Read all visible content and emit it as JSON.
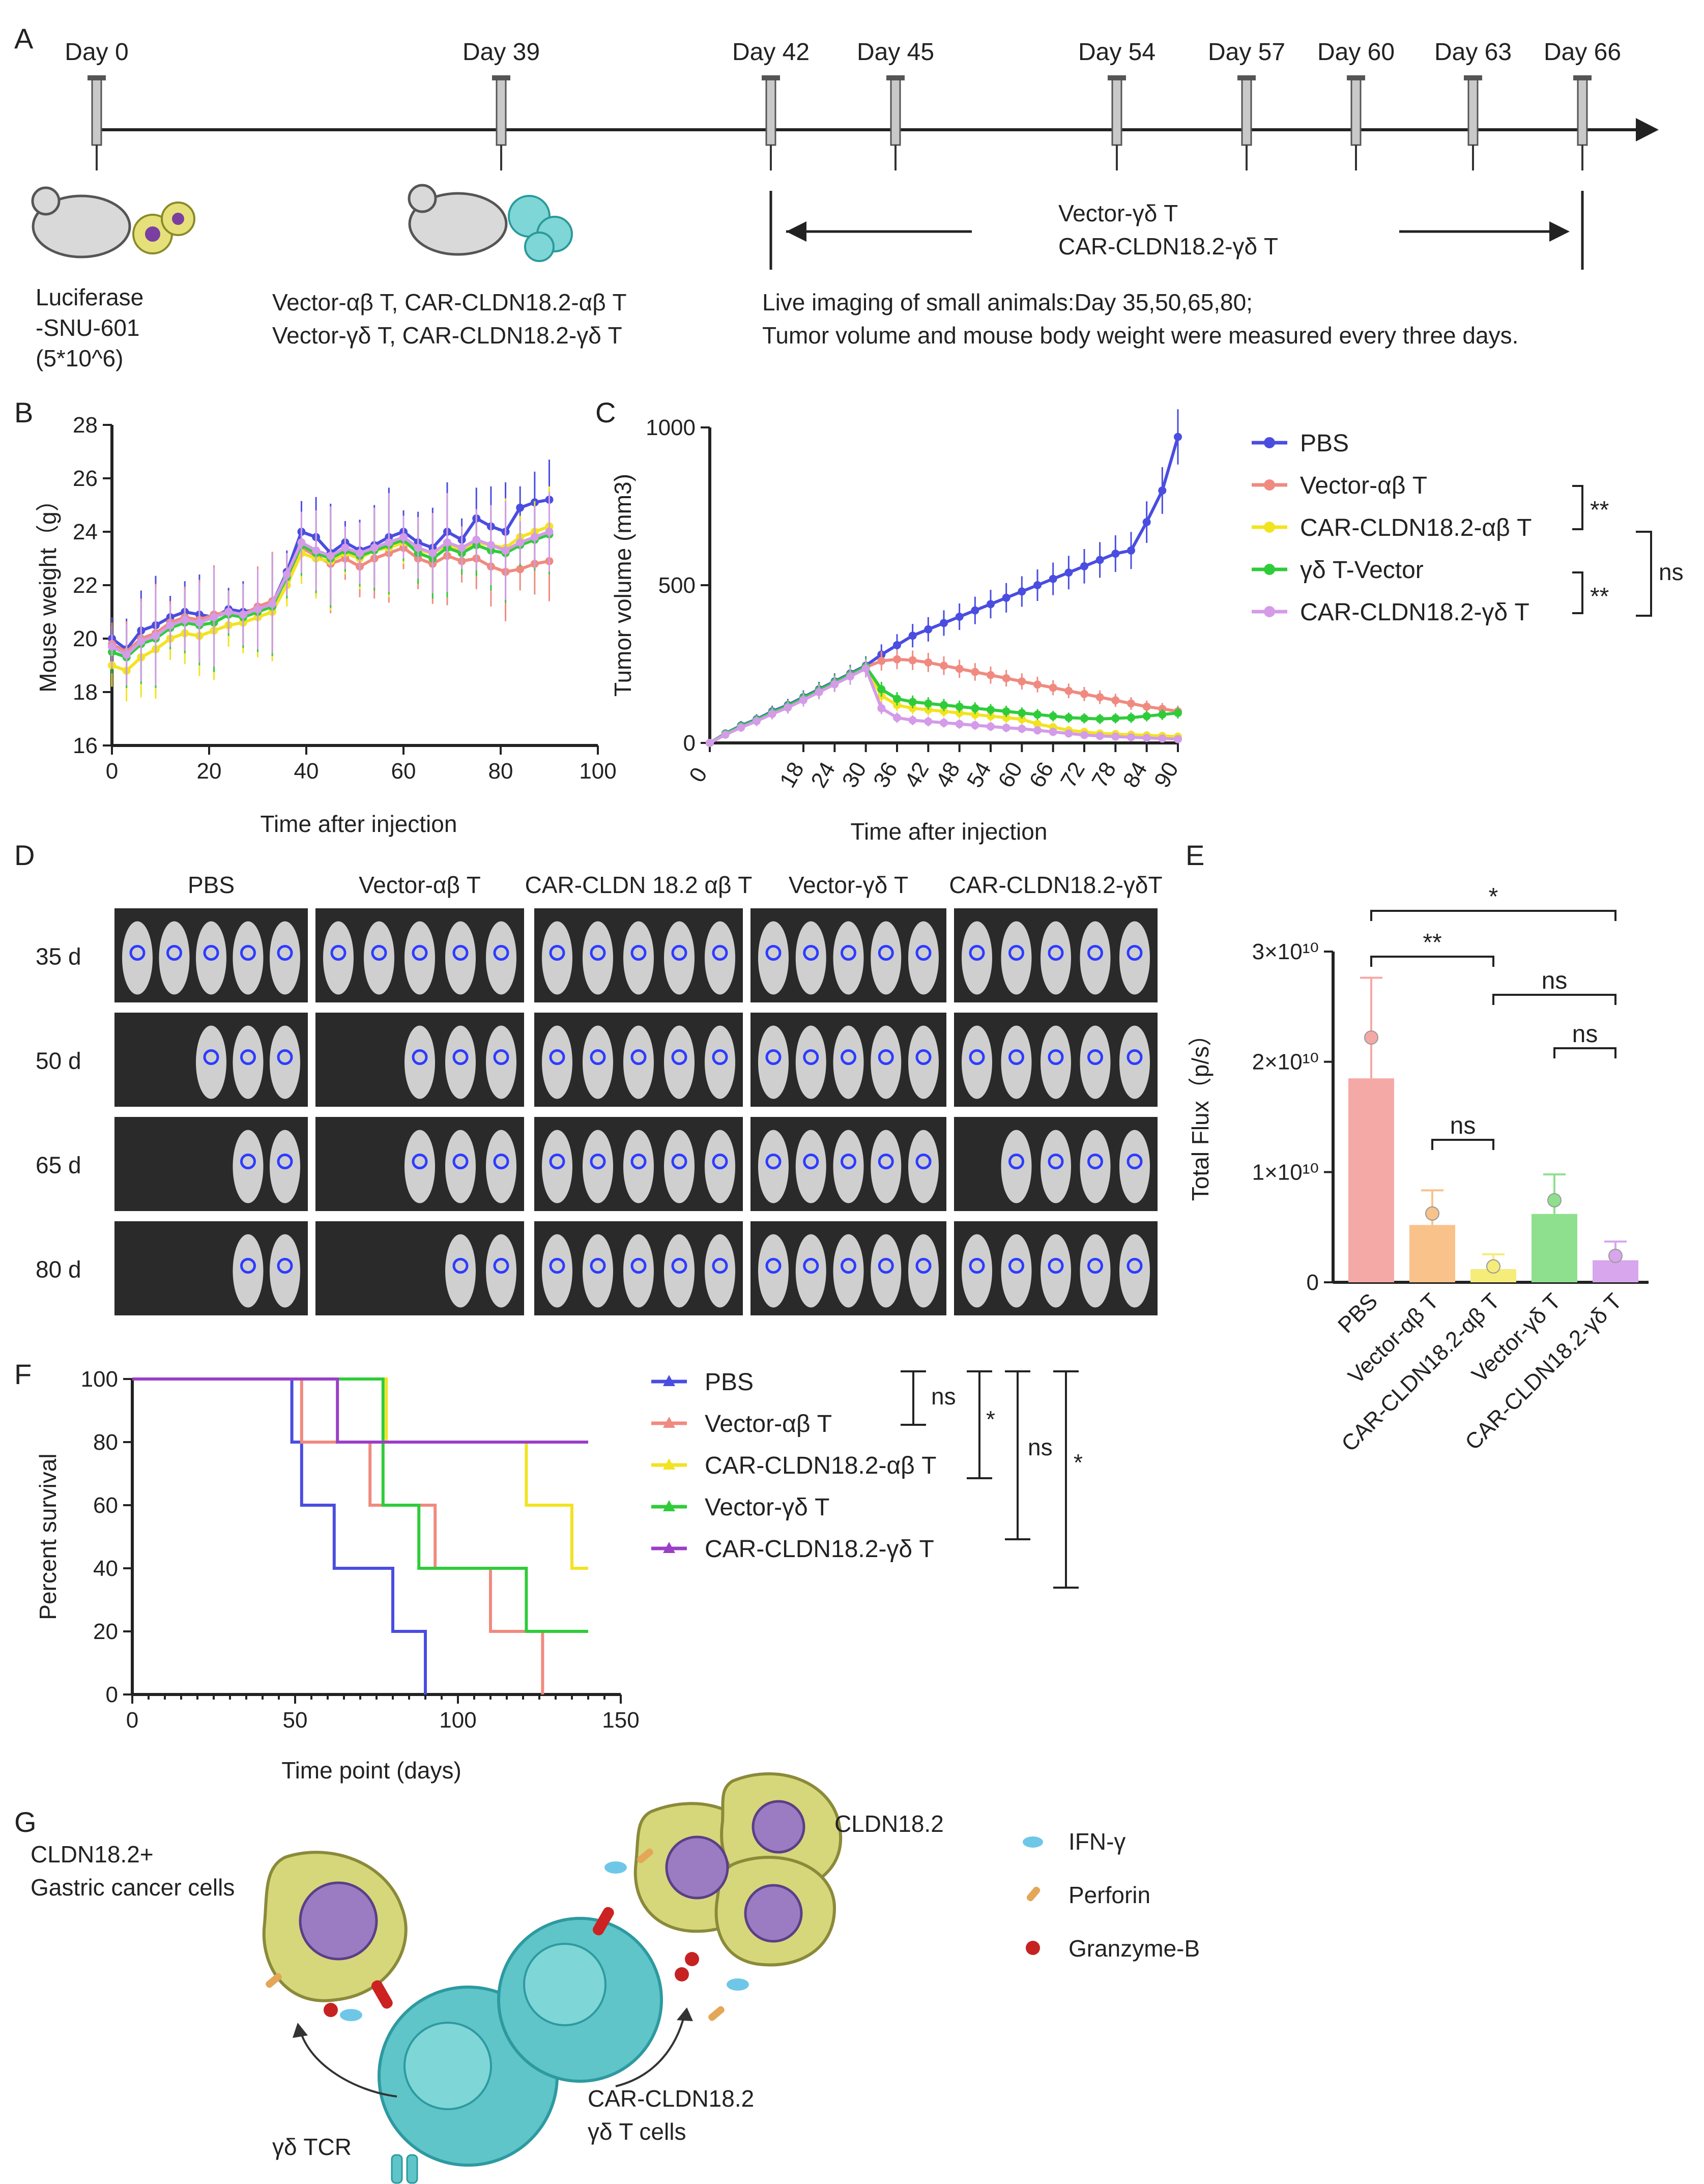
{
  "panel_labels": [
    "A",
    "B",
    "C",
    "D",
    "E",
    "F",
    "G"
  ],
  "panel_a": {
    "timeline_days": [
      "Day 0",
      "Day 39",
      "Day 42",
      "Day 45",
      "Day 54",
      "Day 57",
      "Day 60",
      "Day 63",
      "Day 66"
    ],
    "cell_label": [
      "Luciferase",
      "-SNU-601",
      "(5*10^6)"
    ],
    "groups_text": [
      "Vector-αβ T, CAR-CLDN18.2-αβ T",
      "Vector-γδ T, CAR-CLDN18.2-γδ T"
    ],
    "arrow_text": [
      "Vector-γδ T",
      "CAR-CLDN18.2-γδ T"
    ],
    "note_text": [
      "Live imaging of small animals:Day 35,50,65,80;",
      "Tumor volume and mouse body weight were measured every three days."
    ]
  },
  "chart_data": [
    {
      "id": "B",
      "type": "line",
      "xlabel": "Time after injection",
      "ylabel": "Mouse weight（g）",
      "xlim": [
        0,
        100
      ],
      "ylim": [
        16,
        28
      ],
      "xticks": [
        "0",
        "20",
        "40",
        "60",
        "80",
        "100"
      ],
      "yticks": [
        "16",
        "18",
        "20",
        "22",
        "24",
        "26",
        "28"
      ],
      "x": [
        0,
        3,
        6,
        9,
        12,
        15,
        18,
        21,
        24,
        27,
        30,
        33,
        36,
        39,
        42,
        45,
        48,
        51,
        54,
        57,
        60,
        63,
        66,
        69,
        72,
        75,
        78,
        81,
        84,
        87,
        90
      ],
      "series": [
        {
          "name": "PBS",
          "color": "#4a4de0",
          "values": [
            20.0,
            19.6,
            20.3,
            20.5,
            20.8,
            21.0,
            20.9,
            20.8,
            21.1,
            21.0,
            21.1,
            21.3,
            22.5,
            24.0,
            23.8,
            23.2,
            23.6,
            23.3,
            23.5,
            23.8,
            24.0,
            23.6,
            23.4,
            24.0,
            23.7,
            24.5,
            24.2,
            24.0,
            24.9,
            25.1,
            25.2
          ]
        },
        {
          "name": "Vector-αβ T",
          "color": "#f08a80",
          "values": [
            19.8,
            19.5,
            20.0,
            20.2,
            20.6,
            20.8,
            20.7,
            20.9,
            21.0,
            20.9,
            21.2,
            21.4,
            22.2,
            23.4,
            23.1,
            22.8,
            23.0,
            22.7,
            23.0,
            23.2,
            23.4,
            23.0,
            22.8,
            23.1,
            22.9,
            23.0,
            22.7,
            22.5,
            22.6,
            22.8,
            22.9
          ]
        },
        {
          "name": "CAR-CLDN18.2-αβ T",
          "color": "#f2e320",
          "values": [
            19.0,
            18.8,
            19.3,
            19.6,
            20.0,
            20.2,
            20.1,
            20.3,
            20.5,
            20.6,
            20.8,
            21.0,
            22.0,
            23.2,
            23.0,
            22.9,
            23.2,
            23.0,
            23.3,
            23.4,
            23.6,
            23.3,
            23.2,
            23.5,
            23.3,
            23.6,
            23.5,
            23.4,
            23.8,
            24.0,
            24.2
          ]
        },
        {
          "name": "Vector-γδ T",
          "color": "#2fcc3a",
          "values": [
            19.5,
            19.3,
            19.8,
            20.0,
            20.4,
            20.6,
            20.5,
            20.6,
            20.9,
            20.8,
            21.0,
            21.2,
            22.3,
            23.5,
            23.2,
            23.0,
            23.3,
            23.1,
            23.3,
            23.5,
            23.7,
            23.2,
            23.0,
            23.4,
            23.2,
            23.5,
            23.3,
            23.2,
            23.5,
            23.7,
            23.9
          ]
        },
        {
          "name": "CAR-CLDN18.2-γδ T",
          "color": "#d49be8",
          "values": [
            19.7,
            19.4,
            19.9,
            20.1,
            20.5,
            20.7,
            20.6,
            20.8,
            21.0,
            20.9,
            21.1,
            21.3,
            22.4,
            23.6,
            23.3,
            23.1,
            23.4,
            23.2,
            23.4,
            23.6,
            23.8,
            23.4,
            23.2,
            23.6,
            23.4,
            23.7,
            23.5,
            23.3,
            23.6,
            23.8,
            24.0
          ]
        }
      ]
    },
    {
      "id": "C",
      "type": "line",
      "xlabel": "Time after injection",
      "ylabel": "Tumor volume (mm3)",
      "xlim": [
        0,
        90
      ],
      "ylim": [
        0,
        1000
      ],
      "xticks": [
        "0",
        "18",
        "24",
        "30",
        "36",
        "42",
        "48",
        "54",
        "60",
        "66",
        "72",
        "78",
        "84",
        "90"
      ],
      "yticks": [
        "0",
        "500",
        "1000"
      ],
      "x": [
        0,
        3,
        6,
        9,
        12,
        15,
        18,
        21,
        24,
        27,
        30,
        33,
        36,
        39,
        42,
        45,
        48,
        51,
        54,
        57,
        60,
        63,
        66,
        69,
        72,
        75,
        78,
        81,
        84,
        87,
        90
      ],
      "series": [
        {
          "name": "PBS",
          "color": "#4a4de0",
          "values": [
            0,
            30,
            55,
            75,
            100,
            120,
            145,
            170,
            195,
            220,
            245,
            280,
            310,
            340,
            360,
            380,
            400,
            420,
            440,
            460,
            480,
            500,
            520,
            540,
            560,
            580,
            600,
            610,
            700,
            800,
            970
          ]
        },
        {
          "name": "Vector-αβ T",
          "color": "#f08a80",
          "values": [
            0,
            28,
            52,
            72,
            95,
            115,
            140,
            165,
            190,
            215,
            240,
            260,
            265,
            262,
            255,
            245,
            235,
            225,
            215,
            205,
            195,
            185,
            175,
            165,
            155,
            145,
            135,
            125,
            115,
            108,
            100
          ]
        },
        {
          "name": "CAR-CLDN18.2-αβ T",
          "color": "#f2e320",
          "values": [
            0,
            27,
            50,
            70,
            93,
            113,
            137,
            162,
            187,
            212,
            237,
            150,
            120,
            110,
            105,
            100,
            95,
            90,
            85,
            80,
            75,
            60,
            50,
            40,
            35,
            30,
            28,
            26,
            24,
            22,
            20
          ]
        },
        {
          "name": "γδ T-Vector",
          "color": "#2fcc3a",
          "values": [
            0,
            29,
            53,
            73,
            97,
            117,
            142,
            167,
            192,
            217,
            242,
            170,
            140,
            130,
            125,
            120,
            115,
            110,
            105,
            100,
            95,
            90,
            85,
            80,
            78,
            76,
            78,
            80,
            85,
            90,
            95
          ]
        },
        {
          "name": "CAR-CLDN18.2-γδ T",
          "color": "#d49be8",
          "values": [
            0,
            26,
            49,
            69,
            92,
            112,
            136,
            161,
            186,
            211,
            236,
            110,
            80,
            72,
            68,
            64,
            60,
            56,
            52,
            48,
            45,
            40,
            35,
            30,
            25,
            22,
            20,
            18,
            16,
            14,
            12
          ]
        }
      ],
      "significance": [
        "**",
        "**",
        "ns"
      ]
    },
    {
      "id": "E",
      "type": "bar",
      "ylabel": "Total Flux（p/s）",
      "ylim": [
        0,
        30000000000.0
      ],
      "yticks": [
        "0",
        "1×10¹⁰",
        "2×10¹⁰",
        "3×10¹⁰"
      ],
      "categories": [
        "PBS",
        "Vector-αβ T",
        "CAR-CLDN18.2-αβ T",
        "Vector-γδ T",
        "CAR-CLDN18.2-γδ T"
      ],
      "colors": [
        "#f5a9a6",
        "#f9c28a",
        "#f5ec7a",
        "#8ee08e",
        "#d7a6ec"
      ],
      "values": [
        18500000000.0,
        5200000000.0,
        1200000000.0,
        6200000000.0,
        2000000000.0
      ],
      "significance": [
        "*",
        "**",
        "ns",
        "ns",
        "ns"
      ]
    },
    {
      "id": "F",
      "type": "line",
      "xlabel": "Time point (days)",
      "ylabel": "Percent survival",
      "xlim": [
        0,
        150
      ],
      "ylim": [
        0,
        100
      ],
      "xticks": [
        "0",
        "50",
        "100",
        "150"
      ],
      "yticks": [
        "0",
        "20",
        "40",
        "60",
        "80",
        "100"
      ],
      "series": [
        {
          "name": "PBS",
          "color": "#4a4de0",
          "steps": [
            [
              0,
              100
            ],
            [
              49,
              100
            ],
            [
              49,
              80
            ],
            [
              52,
              80
            ],
            [
              52,
              60
            ],
            [
              62,
              60
            ],
            [
              62,
              40
            ],
            [
              80,
              40
            ],
            [
              80,
              20
            ],
            [
              90,
              20
            ],
            [
              90,
              0
            ]
          ]
        },
        {
          "name": "Vector-αβ T",
          "color": "#f08a80",
          "steps": [
            [
              0,
              100
            ],
            [
              52,
              100
            ],
            [
              52,
              80
            ],
            [
              73,
              80
            ],
            [
              73,
              60
            ],
            [
              93,
              60
            ],
            [
              93,
              40
            ],
            [
              110,
              40
            ],
            [
              110,
              20
            ],
            [
              126,
              20
            ],
            [
              126,
              0
            ]
          ]
        },
        {
          "name": "CAR-CLDN18.2-αβ T",
          "color": "#f2e320",
          "steps": [
            [
              0,
              100
            ],
            [
              78,
              100
            ],
            [
              78,
              80
            ],
            [
              121,
              80
            ],
            [
              121,
              60
            ],
            [
              135,
              60
            ],
            [
              135,
              40
            ],
            [
              140,
              40
            ]
          ]
        },
        {
          "name": "Vector-γδ T",
          "color": "#2fcc3a",
          "steps": [
            [
              0,
              100
            ],
            [
              77,
              100
            ],
            [
              77,
              60
            ],
            [
              88,
              60
            ],
            [
              88,
              40
            ],
            [
              121,
              40
            ],
            [
              121,
              20
            ],
            [
              140,
              20
            ]
          ]
        },
        {
          "name": "CAR-CLDN18.2-γδ T",
          "color": "#9b3fc7",
          "steps": [
            [
              0,
              100
            ],
            [
              63,
              100
            ],
            [
              63,
              80
            ],
            [
              140,
              80
            ]
          ]
        }
      ],
      "significance": [
        "ns",
        "*",
        "ns",
        "*"
      ]
    }
  ],
  "panel_d": {
    "columns": [
      "PBS",
      "Vector-αβ T",
      "CAR-CLDN 18.2 αβ T",
      "Vector-γδ T",
      "CAR-CLDN18.2-γδT"
    ],
    "rows": [
      "35 d",
      "50 d",
      "65 d",
      "80 d"
    ]
  },
  "panel_g": {
    "labels": [
      "CLDN18.2+",
      "Gastric cancer cells",
      "CLDN18.2",
      "γδ TCR",
      "CAR-CLDN18.2",
      "γδ T cells"
    ],
    "legend": [
      "IFN-γ",
      "Perforin",
      "Granzyme-B"
    ]
  }
}
